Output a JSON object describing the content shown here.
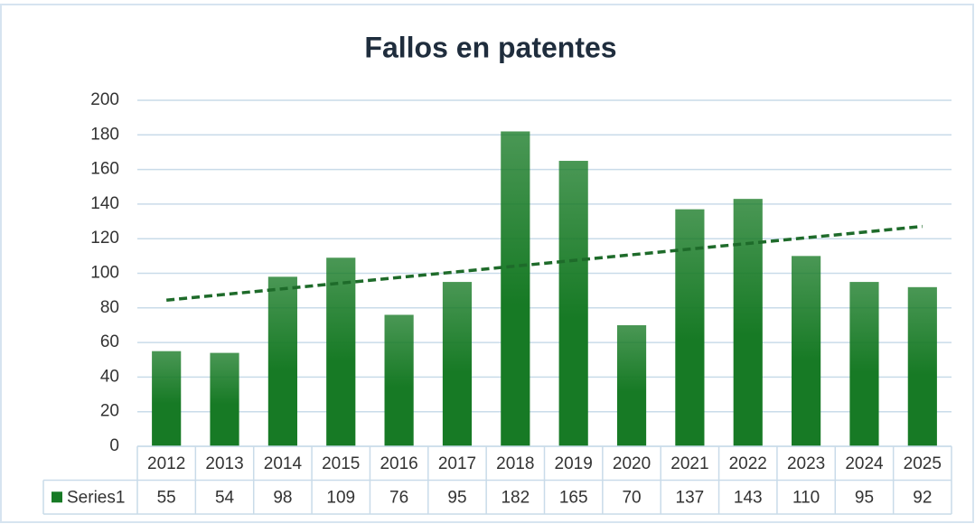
{
  "chart_data": {
    "type": "bar",
    "title": "Fallos en patentes",
    "categories": [
      "2012",
      "2013",
      "2014",
      "2015",
      "2016",
      "2017",
      "2018",
      "2019",
      "2020",
      "2021",
      "2022",
      "2023",
      "2024",
      "2025"
    ],
    "series": [
      {
        "name": "Series1",
        "color": "#177a25",
        "values": [
          55,
          54,
          98,
          109,
          76,
          95,
          182,
          165,
          70,
          137,
          143,
          110,
          95,
          92
        ]
      }
    ],
    "ylim": [
      0,
      200
    ],
    "yticks": [
      0,
      20,
      40,
      60,
      80,
      100,
      120,
      140,
      160,
      180,
      200
    ],
    "grid": true,
    "data_table": true,
    "trendline": "linear",
    "trendline_color": "#1e6b2a"
  }
}
